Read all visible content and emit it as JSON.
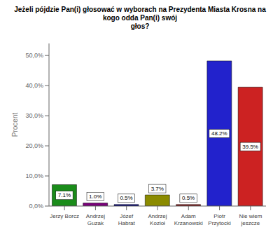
{
  "chart_data": {
    "type": "bar",
    "title": "Jeżeli pójdzie Pan(i) głosować w wyborach na Prezydenta Miasta Krosna na kogo odda Pan(i) swój\ngłos?",
    "categories": [
      "Jerzy Borcz",
      "Andrzej\nGuzak",
      "Józef\nHabrat",
      "Andrzej\nKozioł",
      "Adam\nKrzanowski",
      "Piotr\nPrzytocki",
      "Nie wiem\njeszcze"
    ],
    "values": [
      7.1,
      1.0,
      0.5,
      3.7,
      0.5,
      48.2,
      39.5
    ],
    "value_labels": [
      "7.1%",
      "1.0%",
      "0.5%",
      "3.7%",
      "0.5%",
      "48.2%",
      "39.5%"
    ],
    "data_labels": true,
    "colors": [
      "#1A8C1A",
      "#7B007B",
      "#000080",
      "#8B8B00",
      "#8B1A1A",
      "#2222CC",
      "#CC2222"
    ],
    "ylabel": "Procent",
    "ylim": [
      0,
      54
    ],
    "yticks": [
      {
        "value": 0.0,
        "label": "0,0%"
      },
      {
        "value": 10.0,
        "label": "10,0%"
      },
      {
        "value": 20.0,
        "label": "20,0%"
      },
      {
        "value": 30.0,
        "label": "30,0%"
      },
      {
        "value": 40.0,
        "label": "40,0%"
      },
      {
        "value": 50.0,
        "label": "50,0%"
      }
    ],
    "grid": false
  }
}
